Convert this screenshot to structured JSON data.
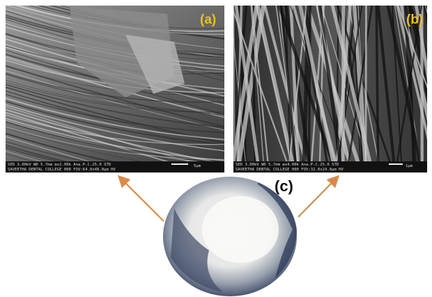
{
  "panels": [
    {
      "label": "(a)",
      "info_line1": "SED   3.00kV  WD 5.7mm  ✪x2.00k  Ana.P.C.25.0  STD",
      "info_line2": "SAVEETHA DENTAL COLLEGE        000  FOV:64.0x48.0μm   HV",
      "scale_bar": "5μm"
    },
    {
      "label": "(b)",
      "info_line1": "SED   3.00kV  WD 5.7mm  ✪x4.00k  Ana.P.C.25.0  STD",
      "info_line2": "SAVEETHA DENTAL COLLEGE        000  FOV:32.0x24.0μm   HV",
      "scale_bar": "1μm"
    }
  ],
  "sample_label": "(c)"
}
